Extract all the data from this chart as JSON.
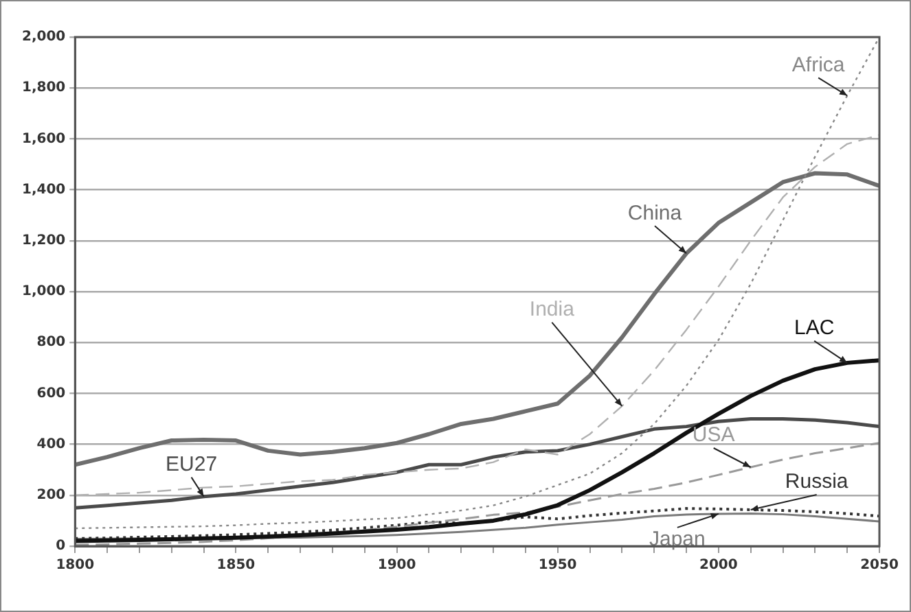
{
  "chart_data": {
    "type": "line",
    "x": [
      1800,
      1810,
      1820,
      1830,
      1840,
      1850,
      1860,
      1870,
      1880,
      1890,
      1900,
      1910,
      1920,
      1930,
      1940,
      1950,
      1960,
      1970,
      1980,
      1990,
      2000,
      2010,
      2020,
      2030,
      2040,
      2050
    ],
    "xlim": [
      1800,
      2050
    ],
    "xticks": [
      1800,
      {
        "value": 1810,
        "label": null
      },
      {
        "value": 1820,
        "label": null
      },
      {
        "value": 1830,
        "label": null
      },
      {
        "value": 1840,
        "label": null
      },
      1850,
      {
        "value": 1860,
        "label": null
      },
      {
        "value": 1870,
        "label": null
      },
      {
        "value": 1880,
        "label": null
      },
      {
        "value": 1890,
        "label": null
      },
      1900,
      {
        "value": 1910,
        "label": null
      },
      {
        "value": 1920,
        "label": null
      },
      {
        "value": 1930,
        "label": null
      },
      {
        "value": 1940,
        "label": null
      },
      1950,
      {
        "value": 1960,
        "label": null
      },
      {
        "value": 1970,
        "label": null
      },
      {
        "value": 1980,
        "label": null
      },
      {
        "value": 1990,
        "label": null
      },
      2000,
      {
        "value": 2010,
        "label": null
      },
      {
        "value": 2020,
        "label": null
      },
      {
        "value": 2030,
        "label": null
      },
      {
        "value": 2040,
        "label": null
      },
      2050
    ],
    "ylim": [
      0,
      2000
    ],
    "yticks": [
      {
        "value": 0,
        "label": "0"
      },
      {
        "value": 200,
        "label": "200"
      },
      {
        "value": 400,
        "label": "400"
      },
      {
        "value": 600,
        "label": "600"
      },
      {
        "value": 800,
        "label": "800"
      },
      {
        "value": 1000,
        "label": "1,000"
      },
      {
        "value": 1200,
        "label": "1,200"
      },
      {
        "value": 1400,
        "label": "1,400"
      },
      {
        "value": 1600,
        "label": "1,600"
      },
      {
        "value": 1800,
        "label": "1,800"
      },
      {
        "value": 2000,
        "label": "2,000"
      }
    ],
    "grid": "y",
    "legend": false,
    "marker": "none",
    "series": [
      {
        "name": "Africa",
        "color": "#888888",
        "line_style": "dotted",
        "values": [
          70,
          72,
          74,
          76,
          78,
          82,
          88,
          92,
          98,
          105,
          110,
          125,
          140,
          160,
          195,
          240,
          285,
          365,
          480,
          630,
          810,
          1030,
          1280,
          1530,
          1770,
          2000
        ]
      },
      {
        "name": "China",
        "color": "#6e6e6e",
        "line_style": "solid",
        "values": [
          320,
          350,
          385,
          415,
          418,
          415,
          375,
          360,
          370,
          385,
          405,
          440,
          480,
          500,
          530,
          560,
          670,
          820,
          990,
          1150,
          1270,
          1350,
          1430,
          1465,
          1460,
          1415
        ]
      },
      {
        "name": "India",
        "color": "#b0b0b0",
        "line_style": "dashed",
        "values": [
          200,
          205,
          210,
          220,
          230,
          235,
          245,
          255,
          260,
          280,
          290,
          300,
          305,
          330,
          380,
          360,
          440,
          550,
          690,
          850,
          1020,
          1200,
          1370,
          1490,
          1580,
          1615
        ]
      },
      {
        "name": "LAC",
        "color": "#111111",
        "line_style": "solid",
        "values": [
          20,
          22,
          24,
          27,
          30,
          33,
          38,
          43,
          50,
          57,
          65,
          75,
          88,
          100,
          125,
          161,
          220,
          290,
          365,
          445,
          520,
          590,
          650,
          695,
          720,
          730
        ]
      },
      {
        "name": "EU27",
        "color": "#4a4a4a",
        "line_style": "solid",
        "values": [
          150,
          160,
          170,
          180,
          195,
          205,
          220,
          235,
          250,
          270,
          290,
          320,
          320,
          350,
          370,
          375,
          400,
          430,
          460,
          470,
          490,
          500,
          500,
          495,
          485,
          470
        ]
      },
      {
        "name": "USA",
        "color": "#999999",
        "line_style": "dashed",
        "values": [
          5,
          7,
          10,
          13,
          17,
          23,
          31,
          39,
          50,
          63,
          76,
          92,
          106,
          123,
          132,
          155,
          180,
          205,
          225,
          250,
          280,
          310,
          340,
          365,
          385,
          405
        ]
      },
      {
        "name": "Russia",
        "color": "#333333",
        "line_style": "dotted",
        "values": [
          30,
          32,
          35,
          38,
          41,
          45,
          50,
          55,
          63,
          72,
          82,
          95,
          90,
          100,
          115,
          107,
          120,
          130,
          138,
          148,
          146,
          143,
          140,
          135,
          128,
          118
        ]
      },
      {
        "name": "Japan",
        "color": "#7a7a7a",
        "line_style": "solid",
        "values": [
          28,
          29,
          30,
          31,
          32,
          32,
          33,
          34,
          37,
          40,
          44,
          50,
          56,
          64,
          72,
          84,
          94,
          104,
          117,
          124,
          127,
          128,
          125,
          117,
          107,
          97
        ]
      }
    ]
  }
}
